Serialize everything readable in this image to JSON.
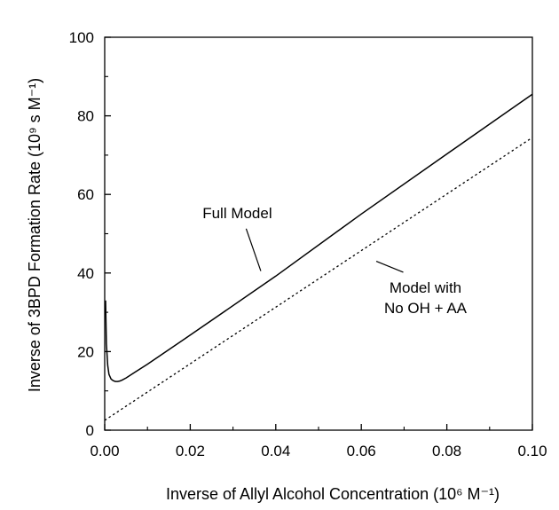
{
  "chart_data": {
    "type": "line",
    "xlabel": "Inverse of Allyl Alcohol Concentration (10⁶ M⁻¹)",
    "ylabel": "Inverse of 3BPD Formation Rate (10⁹ s M⁻¹)",
    "xlim": [
      0.0,
      0.1
    ],
    "ylim": [
      0,
      100
    ],
    "x_ticks": [
      "0.00",
      "0.02",
      "0.04",
      "0.06",
      "0.08",
      "0.10"
    ],
    "y_ticks": [
      "0",
      "20",
      "40",
      "60",
      "80",
      "100"
    ],
    "grid": false,
    "series": [
      {
        "name": "Full Model",
        "style": "solid",
        "x": [
          0.0002,
          0.0004,
          0.0007,
          0.001,
          0.0015,
          0.002,
          0.0025,
          0.003,
          0.0035,
          0.004,
          0.005,
          0.007,
          0.01,
          0.02,
          0.04,
          0.06,
          0.08,
          0.1
        ],
        "y": [
          33,
          22,
          16.5,
          14.2,
          13.0,
          12.6,
          12.4,
          12.4,
          12.5,
          12.7,
          13.3,
          14.7,
          16.8,
          24.2,
          39.2,
          55.0,
          70.3,
          85.5
        ]
      },
      {
        "name": "Model with No OH + AA",
        "style": "dotted",
        "x": [
          0.0,
          0.1
        ],
        "y": [
          2.5,
          74.5
        ]
      }
    ],
    "annotations": [
      {
        "text": "Full Model",
        "x": 0.031,
        "y": 54,
        "arrow_to": [
          0.0365,
          40.5
        ]
      },
      {
        "text_lines": [
          "Model with",
          "No OH + AA"
        ],
        "x": 0.075,
        "y": 35,
        "arrow_to": [
          0.0635,
          43
        ]
      }
    ]
  }
}
